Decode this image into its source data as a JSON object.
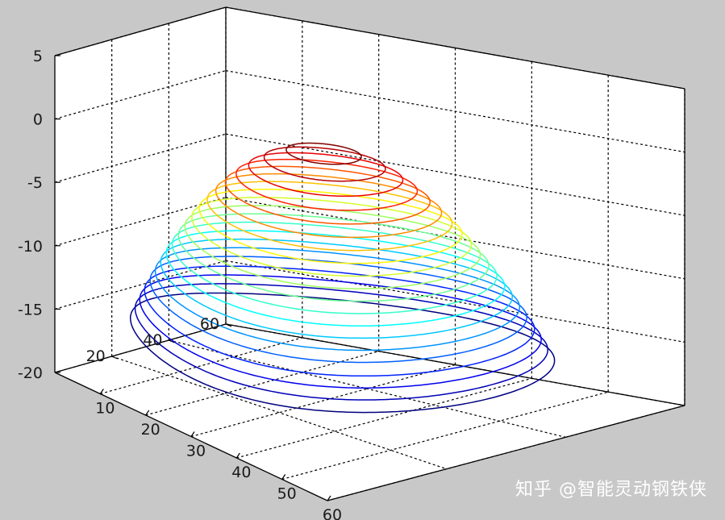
{
  "chart_data": {
    "type": "contour3",
    "title": "",
    "xlabel": "",
    "ylabel": "",
    "zlabel": "",
    "xlim": [
      0,
      60
    ],
    "ylim": [
      0,
      60
    ],
    "zlim": [
      -20,
      5
    ],
    "x_ticks": [
      "10",
      "20",
      "30",
      "40",
      "50",
      "60"
    ],
    "y_ticks": [
      "20",
      "40",
      "60"
    ],
    "z_ticks": [
      "5",
      "0",
      "-5",
      "-10",
      "-15",
      "-20"
    ],
    "surface": "z = -0.02*((x-30)^2 + (y-30)^2)",
    "peak": {
      "x": 30,
      "y": 30,
      "z": 0
    },
    "levels": [
      -15.84,
      -15,
      -14.2,
      -13.4,
      -12.5,
      -11.7,
      -10.9,
      -10.1,
      -9.3,
      -8.5,
      -7.7,
      -6.9,
      -6.1,
      -5.3,
      -4.5,
      -3.7,
      -2.9,
      -2.1,
      -1.3,
      -0.5
    ],
    "colormap": "jet",
    "grid": true
  },
  "watermark": "知乎 @智能灵动钢铁侠"
}
